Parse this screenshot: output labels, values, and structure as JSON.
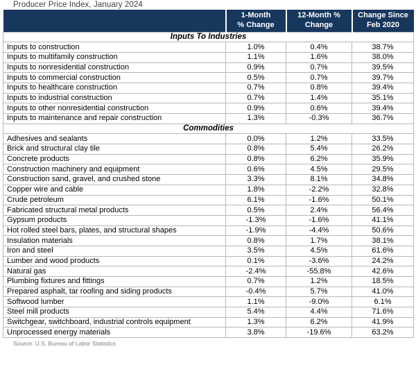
{
  "header": {
    "title": "Producer Price Index, January 2024",
    "col_month1": {
      "line1": "1-Month",
      "line2": "% Change"
    },
    "col_month12": {
      "line1": "12-Month %",
      "line2": "Change"
    },
    "col_feb2020": {
      "line1": "Change Since",
      "line2": "Feb 2020"
    }
  },
  "footer": {
    "source": "Source: U.S. Bureau of Labor Statistics"
  },
  "colors": {
    "header_bg": "#17375D",
    "header_text": "#FFFFFF",
    "grid_border": "#B7B7B7",
    "title_text": "#3F3F3F",
    "source_text": "#7F7F7F"
  },
  "chart_data": {
    "type": "table",
    "title": "Producer Price Index, January 2024",
    "columns": [
      "",
      "1-Month % Change",
      "12-Month % Change",
      "Change Since Feb 2020"
    ],
    "source": "Source: U.S. Bureau of Labor Statistics",
    "sections": [
      {
        "name": "Inputs To Industries",
        "rows": [
          [
            "Inputs to construction",
            "1.0%",
            "0.4%",
            "38.7%"
          ],
          [
            "Inputs to multifamily construction",
            "1.1%",
            "1.6%",
            "38.0%"
          ],
          [
            "Inputs to nonresidential construction",
            "0.9%",
            "0.7%",
            "39.5%"
          ],
          [
            "Inputs to commercial construction",
            "0.5%",
            "0.7%",
            "39.7%"
          ],
          [
            "Inputs to healthcare construction",
            "0.7%",
            "0.8%",
            "39.4%"
          ],
          [
            "Inputs to industrial construction",
            "0.7%",
            "1.4%",
            "35.1%"
          ],
          [
            "Inputs to other nonresidential construction",
            "0.9%",
            "0.6%",
            "39.4%"
          ],
          [
            "Inputs to maintenance and repair construction",
            "1.3%",
            "-0.3%",
            "36.7%"
          ]
        ]
      },
      {
        "name": "Commodities",
        "rows": [
          [
            "Adhesives and sealants",
            "0.0%",
            "1.2%",
            "33.5%"
          ],
          [
            "Brick and structural clay tile",
            "0.8%",
            "5.4%",
            "26.2%"
          ],
          [
            "Concrete products",
            "0.8%",
            "6.2%",
            "35.9%"
          ],
          [
            "Construction machinery and equipment",
            "0.6%",
            "4.5%",
            "29.5%"
          ],
          [
            "Construction sand, gravel, and crushed stone",
            "3.3%",
            "8.1%",
            "34.8%"
          ],
          [
            "Copper wire and cable",
            "1.8%",
            "-2.2%",
            "32.8%"
          ],
          [
            "Crude petroleum",
            "6.1%",
            "-1.6%",
            "50.1%"
          ],
          [
            "Fabricated structural metal products",
            "0.5%",
            "2.4%",
            "56.4%"
          ],
          [
            "Gypsum products",
            "-1.3%",
            "-1.6%",
            "41.1%"
          ],
          [
            "Hot rolled steel bars, plates, and structural shapes",
            "-1.9%",
            "-4.4%",
            "50.6%"
          ],
          [
            "Insulation materials",
            "0.8%",
            "1.7%",
            "38.1%"
          ],
          [
            "Iron and steel",
            "3.5%",
            "4.5%",
            "61.6%"
          ],
          [
            "Lumber and wood products",
            "0.1%",
            "-3.6%",
            "24.2%"
          ],
          [
            "Natural gas",
            "-2.4%",
            "-55.8%",
            "42.6%"
          ],
          [
            "Plumbing fixtures and fittings",
            "0.7%",
            "1.2%",
            "18.5%"
          ],
          [
            "Prepared asphalt, tar roofing and siding products",
            "-0.4%",
            "5.7%",
            "41.0%"
          ],
          [
            "Softwood lumber",
            "1.1%",
            "-9.0%",
            "6.1%"
          ],
          [
            "Steel mill products",
            "5.4%",
            "4.4%",
            "71.6%"
          ],
          [
            "Switchgear, switchboard, industrial controls equipment",
            "1.3%",
            "6.2%",
            "41.9%"
          ],
          [
            "Unprocessed energy materials",
            "3.8%",
            "-19.6%",
            "63.2%"
          ]
        ]
      }
    ]
  }
}
